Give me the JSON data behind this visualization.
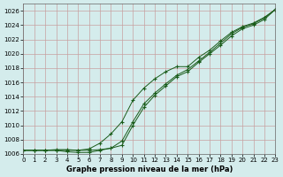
{
  "title": "Graphe pression niveau de la mer (hPa)",
  "bg_color": "#d4ecec",
  "grid_color": "#c8a0a0",
  "line_color": "#1a5c1a",
  "x_min": 0,
  "x_max": 23,
  "y_min": 1006,
  "y_max": 1027,
  "y_ticks": [
    1006,
    1008,
    1010,
    1012,
    1014,
    1016,
    1018,
    1020,
    1022,
    1024,
    1026
  ],
  "series1_x": [
    0,
    1,
    2,
    3,
    4,
    5,
    6,
    7,
    8,
    9,
    10,
    11,
    12,
    13,
    14,
    15,
    16,
    17,
    18,
    19,
    20,
    21,
    22,
    23
  ],
  "series1_y": [
    1006.5,
    1006.5,
    1006.5,
    1006.6,
    1006.6,
    1006.5,
    1006.5,
    1006.6,
    1006.8,
    1007.2,
    1010.0,
    1012.5,
    1014.2,
    1015.5,
    1016.8,
    1017.5,
    1018.8,
    1020.0,
    1021.2,
    1022.5,
    1023.5,
    1024.0,
    1024.8,
    1026.2
  ],
  "series2_x": [
    0,
    1,
    2,
    3,
    4,
    5,
    6,
    7,
    8,
    9,
    10,
    11,
    12,
    13,
    14,
    15,
    16,
    17,
    18,
    19,
    20,
    21,
    22,
    23
  ],
  "series2_y": [
    1006.5,
    1006.5,
    1006.5,
    1006.5,
    1006.3,
    1006.2,
    1006.2,
    1006.5,
    1006.8,
    1007.8,
    1010.5,
    1013.0,
    1014.5,
    1015.8,
    1017.0,
    1017.8,
    1019.0,
    1020.2,
    1021.5,
    1022.8,
    1023.7,
    1024.2,
    1025.0,
    1026.2
  ],
  "series3_x": [
    0,
    1,
    2,
    3,
    4,
    5,
    6,
    7,
    8,
    9,
    10,
    11,
    12,
    13,
    14,
    15,
    16,
    17,
    18,
    19,
    20,
    21,
    22,
    23
  ],
  "series3_y": [
    1006.5,
    1006.5,
    1006.5,
    1006.5,
    1006.5,
    1006.5,
    1006.7,
    1007.5,
    1008.8,
    1010.5,
    1013.5,
    1015.2,
    1016.5,
    1017.5,
    1018.2,
    1018.2,
    1019.5,
    1020.5,
    1021.8,
    1023.0,
    1023.8,
    1024.3,
    1025.1,
    1026.2
  ]
}
